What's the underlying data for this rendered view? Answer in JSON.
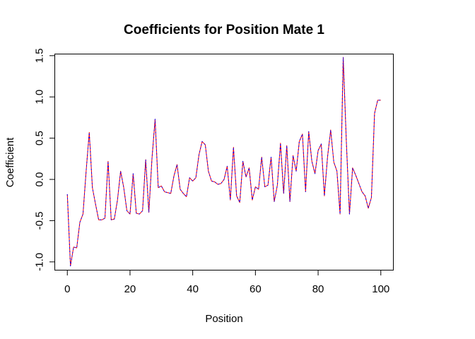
{
  "chart_data": {
    "type": "line",
    "title": "Coefficients for Position Mate 1",
    "xlabel": "Position",
    "ylabel": "Coefficient",
    "xlim": [
      -4,
      104
    ],
    "ylim": [
      -1.1,
      1.52
    ],
    "xticks": [
      0,
      20,
      40,
      60,
      80,
      100
    ],
    "xtick_labels": [
      "0",
      "20",
      "40",
      "60",
      "80",
      "100"
    ],
    "yticks": [
      -1.0,
      -0.5,
      0.0,
      0.5,
      1.0,
      1.5
    ],
    "ytick_labels": [
      "-1.0",
      "-0.5",
      "0.0",
      "0.5",
      "1.0",
      "1.5"
    ],
    "grid": false,
    "legend": "none",
    "x": [
      0,
      1,
      2,
      3,
      4,
      5,
      6,
      7,
      8,
      9,
      10,
      11,
      12,
      13,
      14,
      15,
      16,
      17,
      18,
      19,
      20,
      21,
      22,
      23,
      24,
      25,
      26,
      27,
      28,
      29,
      30,
      31,
      32,
      33,
      34,
      35,
      36,
      37,
      38,
      39,
      40,
      41,
      42,
      43,
      44,
      45,
      46,
      47,
      48,
      49,
      50,
      51,
      52,
      53,
      54,
      55,
      56,
      57,
      58,
      59,
      60,
      61,
      62,
      63,
      64,
      65,
      66,
      67,
      68,
      69,
      70,
      71,
      72,
      73,
      74,
      75,
      76,
      77,
      78,
      79,
      80,
      81,
      82,
      83,
      84,
      85,
      86,
      87,
      88,
      89,
      90,
      91,
      92,
      93,
      94,
      95,
      96,
      97,
      98,
      99,
      100
    ],
    "series": [
      {
        "color": "#ff0000",
        "style": "solid",
        "values": [
          -0.18,
          -1.05,
          -0.82,
          -0.83,
          -0.52,
          -0.42,
          0.1,
          0.57,
          -0.1,
          -0.3,
          -0.49,
          -0.49,
          -0.47,
          0.22,
          -0.49,
          -0.48,
          -0.25,
          0.1,
          -0.1,
          -0.38,
          -0.42,
          0.07,
          -0.41,
          -0.42,
          -0.38,
          0.24,
          -0.4,
          0.25,
          0.73,
          -0.1,
          -0.08,
          -0.15,
          -0.16,
          -0.17,
          0.04,
          0.18,
          -0.12,
          -0.17,
          -0.21,
          0.02,
          -0.02,
          0.02,
          0.3,
          0.46,
          0.42,
          0.1,
          -0.02,
          -0.03,
          -0.06,
          -0.05,
          0.0,
          0.16,
          -0.25,
          0.39,
          -0.2,
          -0.28,
          0.22,
          0.03,
          0.14,
          -0.25,
          -0.09,
          -0.12,
          0.27,
          -0.09,
          -0.07,
          0.27,
          -0.27,
          -0.07,
          0.44,
          -0.17,
          0.41,
          -0.27,
          0.29,
          0.1,
          0.46,
          0.55,
          -0.15,
          0.58,
          0.22,
          0.07,
          0.35,
          0.43,
          -0.2,
          0.27,
          0.6,
          0.21,
          0.1,
          -0.42,
          1.48,
          0.46,
          -0.42,
          0.14,
          0.05,
          -0.05,
          -0.15,
          -0.2,
          -0.35,
          -0.22,
          0.8,
          0.96,
          0.96
        ]
      },
      {
        "color": "#0000ff",
        "style": "dashed",
        "values": [
          -0.18,
          -1.05,
          -0.82,
          -0.83,
          -0.52,
          -0.42,
          0.1,
          0.57,
          -0.1,
          -0.3,
          -0.49,
          -0.49,
          -0.47,
          0.22,
          -0.49,
          -0.48,
          -0.25,
          0.1,
          -0.1,
          -0.38,
          -0.42,
          0.07,
          -0.41,
          -0.42,
          -0.38,
          0.24,
          -0.4,
          0.25,
          0.73,
          -0.1,
          -0.08,
          -0.15,
          -0.16,
          -0.17,
          0.04,
          0.18,
          -0.12,
          -0.17,
          -0.21,
          0.02,
          -0.02,
          0.02,
          0.3,
          0.46,
          0.42,
          0.1,
          -0.02,
          -0.03,
          -0.06,
          -0.05,
          0.0,
          0.16,
          -0.25,
          0.39,
          -0.2,
          -0.28,
          0.22,
          0.03,
          0.14,
          -0.25,
          -0.09,
          -0.12,
          0.27,
          -0.09,
          -0.07,
          0.27,
          -0.27,
          -0.07,
          0.44,
          -0.17,
          0.41,
          -0.27,
          0.29,
          0.1,
          0.46,
          0.55,
          -0.15,
          0.58,
          0.22,
          0.07,
          0.35,
          0.43,
          -0.2,
          0.27,
          0.6,
          0.21,
          0.1,
          -0.42,
          1.48,
          0.46,
          -0.42,
          0.14,
          0.05,
          -0.05,
          -0.15,
          -0.2,
          -0.35,
          -0.22,
          0.8,
          0.96,
          0.96
        ]
      }
    ]
  }
}
